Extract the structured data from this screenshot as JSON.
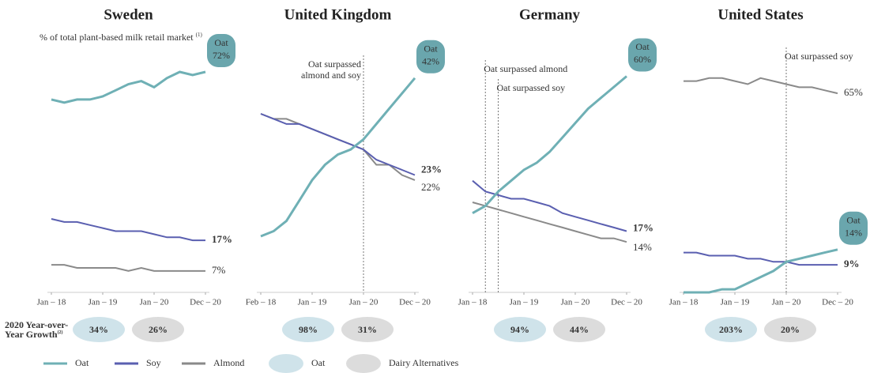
{
  "chart_data": [
    {
      "type": "line",
      "title": "Sweden",
      "subtitle": "% of total plant-based milk retail market",
      "subtitle_note": "(1)",
      "categories": [
        "Jan – 18",
        null,
        null,
        null,
        "Jan – 19",
        null,
        null,
        null,
        "Jan – 20",
        null,
        null,
        null,
        "Dec – 20"
      ],
      "ylim": [
        0,
        80
      ],
      "series": [
        {
          "name": "Oat",
          "color": "#6fb0b5",
          "values": [
            63,
            62,
            63,
            63,
            64,
            66,
            68,
            69,
            67,
            70,
            72,
            71,
            72
          ],
          "value_labels": [
            null,
            null,
            null,
            null,
            null,
            null,
            null,
            null,
            null,
            null,
            null,
            null,
            "72%"
          ]
        },
        {
          "name": "Soy",
          "color": "#5a5fb0",
          "values": [
            24,
            23,
            23,
            22,
            21,
            20,
            20,
            20,
            19,
            18,
            18,
            17,
            17
          ],
          "value_labels": [
            null,
            null,
            null,
            null,
            null,
            null,
            null,
            null,
            null,
            null,
            null,
            null,
            "17%"
          ]
        },
        {
          "name": "Almond",
          "color": "#8a8a8a",
          "values": [
            9,
            9,
            8,
            8,
            8,
            8,
            7,
            8,
            7,
            7,
            7,
            7,
            7
          ],
          "value_labels": [
            null,
            null,
            null,
            null,
            null,
            null,
            null,
            null,
            null,
            null,
            null,
            null,
            "7%"
          ]
        }
      ],
      "annotations": [],
      "growth": [
        "34%",
        "26%"
      ]
    },
    {
      "type": "line",
      "title": "United Kingdom",
      "categories": [
        "Feb – 18",
        null,
        null,
        null,
        "Jan – 19",
        null,
        null,
        null,
        "Jan – 20",
        null,
        null,
        null,
        "Dec – 20"
      ],
      "ylim": [
        0,
        48
      ],
      "series": [
        {
          "name": "Oat",
          "color": "#6fb0b5",
          "values": [
            11,
            12,
            14,
            18,
            22,
            25,
            27,
            28,
            30,
            33,
            36,
            39,
            42
          ],
          "value_labels": [
            null,
            null,
            null,
            null,
            null,
            null,
            null,
            null,
            null,
            null,
            null,
            null,
            "42%"
          ]
        },
        {
          "name": "Soy",
          "color": "#5a5fb0",
          "values": [
            35,
            34,
            33,
            33,
            32,
            31,
            30,
            29,
            28,
            26,
            25,
            24,
            23
          ],
          "value_labels": [
            null,
            null,
            null,
            null,
            null,
            null,
            null,
            null,
            null,
            null,
            null,
            null,
            "23%"
          ]
        },
        {
          "name": "Almond",
          "color": "#8a8a8a",
          "values": [
            35,
            34,
            34,
            33,
            32,
            31,
            30,
            29,
            28,
            25,
            25,
            23,
            22
          ],
          "value_labels": [
            null,
            null,
            null,
            null,
            null,
            null,
            null,
            null,
            null,
            null,
            null,
            null,
            "22%"
          ]
        }
      ],
      "annotations": [
        {
          "text": [
            "Oat surpassed",
            "almond and soy"
          ]
        }
      ],
      "growth": [
        "98%",
        "31%"
      ]
    },
    {
      "type": "line",
      "title": "Germany",
      "categories": [
        "Jan – 18",
        null,
        null,
        null,
        "Jan – 19",
        null,
        null,
        null,
        "Jan – 20",
        null,
        null,
        null,
        "Dec – 20"
      ],
      "ylim": [
        0,
        68
      ],
      "series": [
        {
          "name": "Oat",
          "color": "#6fb0b5",
          "values": [
            22,
            24,
            28,
            31,
            34,
            36,
            39,
            43,
            47,
            51,
            54,
            57,
            60
          ],
          "value_labels": [
            null,
            null,
            null,
            null,
            null,
            null,
            null,
            null,
            null,
            null,
            null,
            null,
            "60%"
          ]
        },
        {
          "name": "Soy",
          "color": "#5a5fb0",
          "values": [
            31,
            28,
            27,
            26,
            26,
            25,
            24,
            22,
            21,
            20,
            19,
            18,
            17
          ],
          "value_labels": [
            null,
            null,
            null,
            null,
            null,
            null,
            null,
            null,
            null,
            null,
            null,
            null,
            "17%"
          ]
        },
        {
          "name": "Almond",
          "color": "#8a8a8a",
          "values": [
            25,
            24,
            23,
            22,
            21,
            20,
            19,
            18,
            17,
            16,
            15,
            15,
            14
          ],
          "value_labels": [
            null,
            null,
            null,
            null,
            null,
            null,
            null,
            null,
            null,
            null,
            null,
            null,
            "14%"
          ]
        }
      ],
      "annotations": [
        {
          "text": [
            "Oat surpassed almond"
          ]
        },
        {
          "text": [
            "Oat surpassed soy"
          ]
        }
      ],
      "growth": [
        "94%",
        "44%"
      ]
    },
    {
      "type": "line",
      "title": "United States",
      "categories": [
        "Jan – 18",
        null,
        null,
        null,
        "Jan – 19",
        null,
        null,
        null,
        "Jan – 20",
        null,
        null,
        null,
        "Dec – 20"
      ],
      "ylim": [
        0,
        80
      ],
      "series": [
        {
          "name": "Oat",
          "color": "#6fb0b5",
          "values": [
            0,
            0,
            0,
            1,
            1,
            3,
            5,
            7,
            10,
            11,
            12,
            13,
            14
          ],
          "value_labels": [
            null,
            null,
            null,
            null,
            null,
            null,
            null,
            null,
            null,
            null,
            null,
            null,
            "14%"
          ]
        },
        {
          "name": "Soy",
          "color": "#5a5fb0",
          "values": [
            13,
            13,
            12,
            12,
            12,
            11,
            11,
            10,
            10,
            9,
            9,
            9,
            9
          ],
          "value_labels": [
            null,
            null,
            null,
            null,
            null,
            null,
            null,
            null,
            null,
            null,
            null,
            null,
            "9%"
          ]
        },
        {
          "name": "Almond",
          "color": "#8a8a8a",
          "values": [
            69,
            69,
            70,
            70,
            69,
            68,
            70,
            69,
            68,
            67,
            67,
            66,
            65
          ],
          "value_labels": [
            null,
            null,
            null,
            null,
            null,
            null,
            null,
            null,
            null,
            null,
            null,
            null,
            "65%"
          ]
        }
      ],
      "annotations": [
        {
          "text": [
            "Oat surpassed soy"
          ]
        }
      ],
      "growth": [
        "203%",
        "20%"
      ]
    }
  ],
  "growth_title": [
    "2020 Year-over-",
    "Year Growth"
  ],
  "growth_note": "(2)",
  "growth_legend": [
    {
      "name": "Oat",
      "color": "#cfe3ea"
    },
    {
      "name": "Dairy Alternatives",
      "color": "#dcdcdc"
    }
  ]
}
